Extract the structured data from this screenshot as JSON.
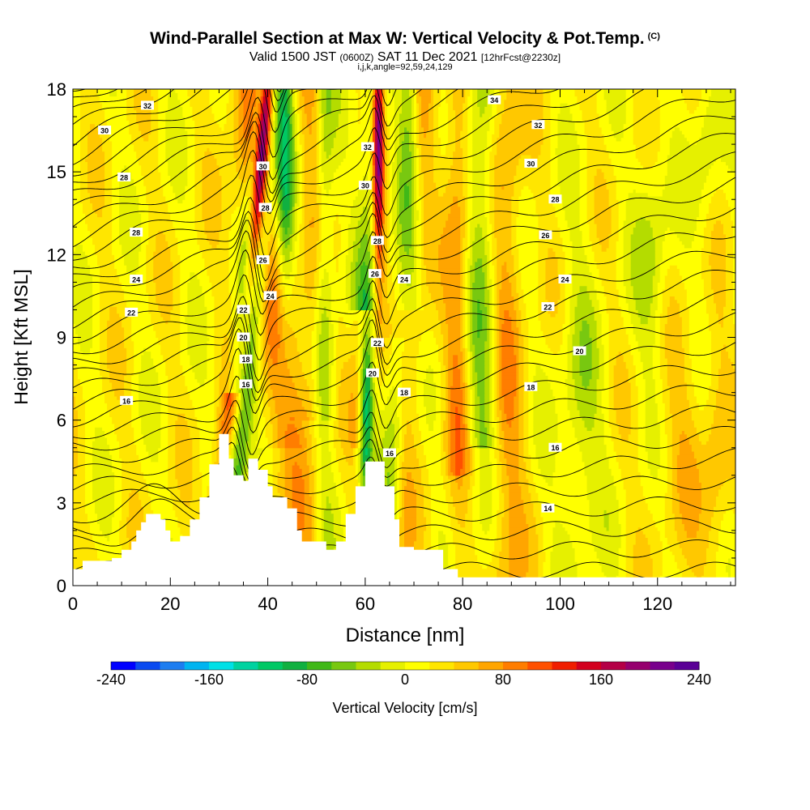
{
  "titles": {
    "main": "Wind-Parallel Section at Max W: Vertical Velocity & Pot.Temp.",
    "copyright": "(C)",
    "valid_prefix": "Valid 1500 JST",
    "valid_z": "(0600Z)",
    "valid_date": "SAT 11 Dec 2021",
    "forecast": "[12hrFcst@2230z]",
    "params": "i,j,k,angle=92,59,24,129"
  },
  "colors": {
    "ridge_fill": "#ffffff",
    "frame": "#000000",
    "contour": "#000000",
    "scale": [
      "#0000ff",
      "#0a4af0",
      "#1c7df0",
      "#00b4f0",
      "#00e0e6",
      "#00d2a0",
      "#00c864",
      "#10b040",
      "#40b818",
      "#78c810",
      "#b4dc00",
      "#e6f000",
      "#ffff00",
      "#ffe600",
      "#ffc800",
      "#ffa500",
      "#ff7d00",
      "#ff5000",
      "#f01e00",
      "#d2001e",
      "#b40046",
      "#96006e",
      "#78008c",
      "#5a0096"
    ]
  },
  "chart_data": {
    "type": "heatmap",
    "title": "Wind-Parallel Section at Max W: Vertical Velocity & Pot.Temp.",
    "xlabel": "Distance [nm]",
    "ylabel": "Height [Kft MSL]",
    "xlim": [
      0,
      136
    ],
    "ylim": [
      0,
      18
    ],
    "xticks": [
      0,
      20,
      40,
      60,
      80,
      100,
      120
    ],
    "yticks": [
      0,
      3,
      6,
      9,
      12,
      15,
      18
    ],
    "colorbar": {
      "label": "Vertical Velocity [cm/s]",
      "range": [
        -240,
        240
      ],
      "step": 20,
      "ticks": [
        -240,
        -160,
        -80,
        0,
        80,
        160,
        240
      ]
    },
    "updraft_cores": [
      {
        "x": 40,
        "y_range": [
          9.5,
          18
        ],
        "peak_cm_s": 180
      },
      {
        "x": 63,
        "y_range": [
          9.5,
          18
        ],
        "peak_cm_s": 200
      }
    ],
    "downdraft_cores": [
      {
        "x": 62,
        "y_range": [
          4,
          9
        ],
        "min_cm_s": -160
      },
      {
        "x": 44,
        "y_range": [
          10,
          18
        ],
        "min_cm_s": -120
      }
    ],
    "terrain": [
      [
        0,
        0.6
      ],
      [
        2,
        0.9
      ],
      [
        8,
        1.0
      ],
      [
        10,
        1.3
      ],
      [
        12,
        1.6
      ],
      [
        13,
        2.0
      ],
      [
        14,
        2.3
      ],
      [
        15,
        2.6
      ],
      [
        18,
        2.4
      ],
      [
        19,
        2.0
      ],
      [
        20,
        1.6
      ],
      [
        22,
        1.8
      ],
      [
        24,
        2.4
      ],
      [
        26,
        3.2
      ],
      [
        28,
        4.4
      ],
      [
        30,
        5.5
      ],
      [
        32,
        4.6
      ],
      [
        33,
        4.0
      ],
      [
        35,
        3.8
      ],
      [
        36,
        4.6
      ],
      [
        38,
        4.2
      ],
      [
        40,
        3.6
      ],
      [
        41,
        3.2
      ],
      [
        44,
        2.8
      ],
      [
        46,
        2.0
      ],
      [
        47,
        1.6
      ],
      [
        51,
        1.6
      ],
      [
        52,
        1.3
      ],
      [
        54,
        1.6
      ],
      [
        56,
        2.6
      ],
      [
        58,
        3.6
      ],
      [
        60,
        4.5
      ],
      [
        62,
        4.5
      ],
      [
        64,
        3.6
      ],
      [
        66,
        2.4
      ],
      [
        67,
        1.4
      ],
      [
        70,
        1.3
      ],
      [
        76,
        0.6
      ],
      [
        79,
        0.3
      ],
      [
        136,
        0.3
      ]
    ],
    "theta_labels": [
      {
        "v": "32",
        "x": 15.3,
        "y": 17.4
      },
      {
        "v": "30",
        "x": 6.5,
        "y": 16.5
      },
      {
        "v": "28",
        "x": 10.5,
        "y": 14.8
      },
      {
        "v": "28",
        "x": 13,
        "y": 12.8
      },
      {
        "v": "24",
        "x": 13,
        "y": 11.1
      },
      {
        "v": "22",
        "x": 12,
        "y": 9.9
      },
      {
        "v": "16",
        "x": 11,
        "y": 6.7
      },
      {
        "v": "30",
        "x": 39,
        "y": 15.2
      },
      {
        "v": "28",
        "x": 39.5,
        "y": 13.7
      },
      {
        "v": "26",
        "x": 39,
        "y": 11.8
      },
      {
        "v": "24",
        "x": 40.5,
        "y": 10.5
      },
      {
        "v": "22",
        "x": 35,
        "y": 10.0
      },
      {
        "v": "20",
        "x": 35,
        "y": 9.0
      },
      {
        "v": "18",
        "x": 35.5,
        "y": 8.2
      },
      {
        "v": "16",
        "x": 35.5,
        "y": 7.3
      },
      {
        "v": "32",
        "x": 60.5,
        "y": 15.9
      },
      {
        "v": "30",
        "x": 60,
        "y": 14.5
      },
      {
        "v": "28",
        "x": 62.5,
        "y": 12.5
      },
      {
        "v": "26",
        "x": 62,
        "y": 11.3
      },
      {
        "v": "24",
        "x": 68,
        "y": 11.1
      },
      {
        "v": "22",
        "x": 62.5,
        "y": 8.8
      },
      {
        "v": "20",
        "x": 61.5,
        "y": 7.7
      },
      {
        "v": "18",
        "x": 68,
        "y": 7.0
      },
      {
        "v": "16",
        "x": 65,
        "y": 4.8
      },
      {
        "v": "34",
        "x": 86.5,
        "y": 17.6
      },
      {
        "v": "32",
        "x": 95.5,
        "y": 16.7
      },
      {
        "v": "30",
        "x": 94,
        "y": 15.3
      },
      {
        "v": "28",
        "x": 99,
        "y": 14.0
      },
      {
        "v": "26",
        "x": 97,
        "y": 12.7
      },
      {
        "v": "24",
        "x": 101,
        "y": 11.1
      },
      {
        "v": "22",
        "x": 97.5,
        "y": 10.1
      },
      {
        "v": "20",
        "x": 104,
        "y": 8.5
      },
      {
        "v": "18",
        "x": 94,
        "y": 7.2
      },
      {
        "v": "16",
        "x": 99,
        "y": 5.0
      },
      {
        "v": "14",
        "x": 97.5,
        "y": 2.8
      }
    ]
  }
}
